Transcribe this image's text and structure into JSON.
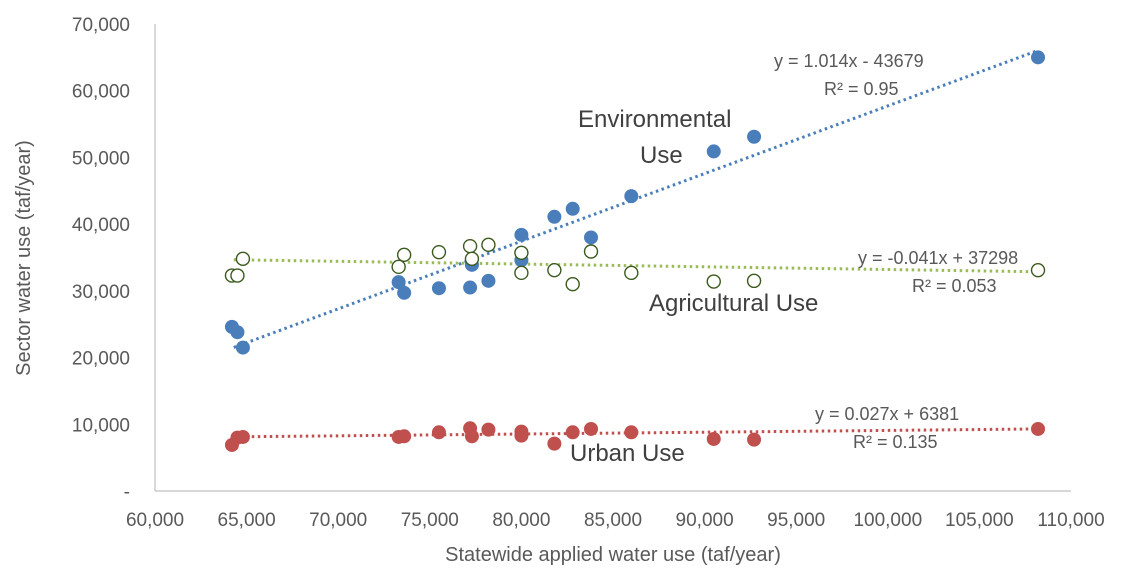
{
  "chart_data": {
    "type": "scatter",
    "xlabel": "Statewide applied water use (taf/year)",
    "ylabel": "Sector water use (taf/year)",
    "xlim": [
      60000,
      110000
    ],
    "ylim": [
      0,
      70000
    ],
    "x_ticks": [
      60000,
      65000,
      70000,
      75000,
      80000,
      85000,
      90000,
      95000,
      100000,
      105000,
      110000
    ],
    "x_tick_labels": [
      "60,000",
      "65,000",
      "70,000",
      "75,000",
      "80,000",
      "85,000",
      "90,000",
      "95,000",
      "100,000",
      "105,000",
      "110,000"
    ],
    "y_ticks": [
      0,
      10000,
      20000,
      30000,
      40000,
      50000,
      60000,
      70000
    ],
    "y_tick_labels": [
      "-",
      "10,000",
      "20,000",
      "30,000",
      "40,000",
      "50,000",
      "60,000",
      "70,000"
    ],
    "grid": false,
    "legend": "none",
    "series": [
      {
        "label_lines": [
          "Environmental",
          "Use"
        ],
        "color": "#4a7ebb",
        "marker": "filled-circle",
        "equation": "y = 1.014x - 43679",
        "r2": "R² = 0.95",
        "trend": {
          "slope": 1.014,
          "intercept": -43679,
          "x_range": [
            64300,
            108200
          ],
          "color": "#4a7ebb"
        },
        "points": [
          [
            64200,
            24600
          ],
          [
            64500,
            23800
          ],
          [
            64800,
            21500
          ],
          [
            73300,
            31300
          ],
          [
            73600,
            29700
          ],
          [
            75500,
            30400
          ],
          [
            77200,
            30500
          ],
          [
            77300,
            33900
          ],
          [
            78200,
            31500
          ],
          [
            80000,
            34600
          ],
          [
            80000,
            38400
          ],
          [
            81800,
            41100
          ],
          [
            82800,
            42300
          ],
          [
            83800,
            38000
          ],
          [
            86000,
            44200
          ],
          [
            90500,
            50900
          ],
          [
            92700,
            53100
          ],
          [
            108200,
            65000
          ]
        ]
      },
      {
        "label_lines": [
          "Agricultural Use"
        ],
        "color": "#9bbb59",
        "marker": "hollow-circle",
        "marker_stroke": "#3b5a1e",
        "equation": "y = -0.041x + 37298",
        "r2": "R² = 0.053",
        "trend": {
          "slope": -0.041,
          "intercept": 37298,
          "x_range": [
            64300,
            108200
          ],
          "color": "#9bbb59"
        },
        "points": [
          [
            64200,
            32300
          ],
          [
            64500,
            32300
          ],
          [
            64800,
            34800
          ],
          [
            73300,
            33600
          ],
          [
            73600,
            35400
          ],
          [
            75500,
            35800
          ],
          [
            77200,
            36700
          ],
          [
            77300,
            34800
          ],
          [
            78200,
            36900
          ],
          [
            80000,
            35700
          ],
          [
            80000,
            32700
          ],
          [
            81800,
            33100
          ],
          [
            82800,
            31000
          ],
          [
            83800,
            35900
          ],
          [
            86000,
            32700
          ],
          [
            90500,
            31400
          ],
          [
            92700,
            31500
          ],
          [
            108200,
            33100
          ]
        ]
      },
      {
        "label_lines": [
          "Urban Use"
        ],
        "color": "#c0504d",
        "marker": "filled-circle",
        "equation": "y = 0.027x + 6381",
        "r2": "R² = 0.135",
        "trend": {
          "slope": 0.027,
          "intercept": 6381,
          "x_range": [
            64300,
            108200
          ],
          "color": "#c0504d"
        },
        "points": [
          [
            64200,
            6900
          ],
          [
            64500,
            8000
          ],
          [
            64800,
            8100
          ],
          [
            73300,
            8100
          ],
          [
            73600,
            8200
          ],
          [
            75500,
            8800
          ],
          [
            77200,
            9400
          ],
          [
            77300,
            8200
          ],
          [
            78200,
            9200
          ],
          [
            80000,
            8900
          ],
          [
            80000,
            8300
          ],
          [
            81800,
            7100
          ],
          [
            82800,
            8800
          ],
          [
            83800,
            9300
          ],
          [
            86000,
            8800
          ],
          [
            90500,
            7800
          ],
          [
            92700,
            7700
          ],
          [
            108200,
            9300
          ]
        ]
      }
    ]
  }
}
